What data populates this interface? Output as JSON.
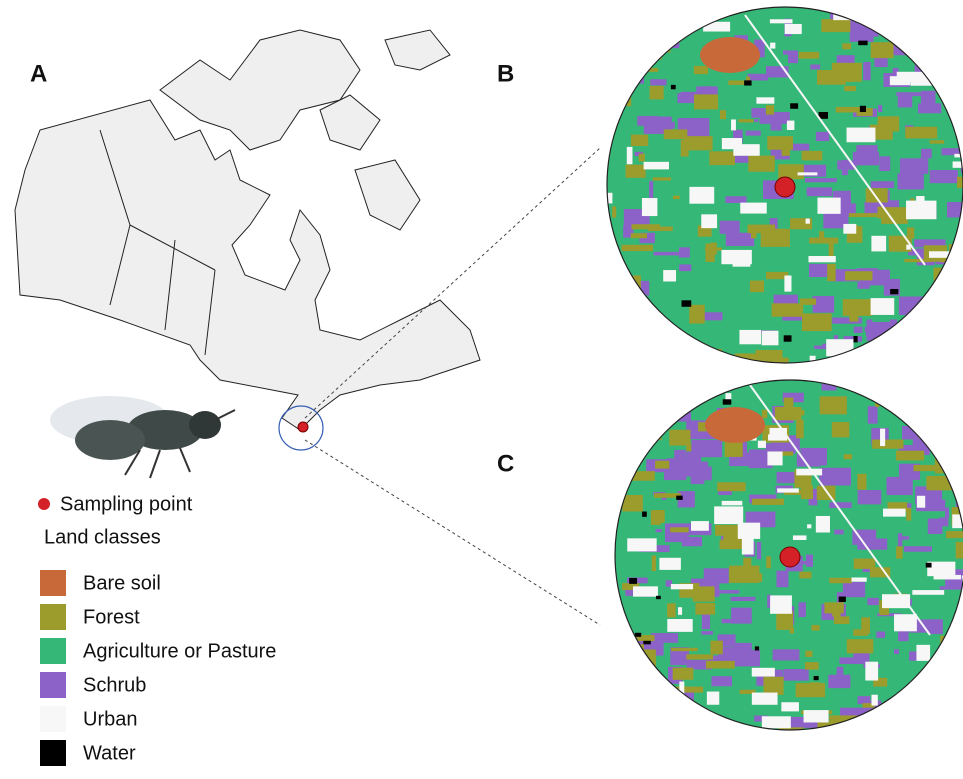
{
  "panels": {
    "a": "A",
    "b": "B",
    "c": "C"
  },
  "legend": {
    "sampling_point": "Sampling point",
    "title": "Land classes",
    "items": [
      {
        "label": "Bare soil",
        "color": "#c8693a"
      },
      {
        "label": "Forest",
        "color": "#9c9c2c"
      },
      {
        "label": "Agriculture or Pasture",
        "color": "#35b877"
      },
      {
        "label": "Schrub",
        "color": "#8c62c8"
      },
      {
        "label": "Urban",
        "color": "#f7f7f7"
      },
      {
        "label": "Water",
        "color": "#000000"
      }
    ]
  }
}
